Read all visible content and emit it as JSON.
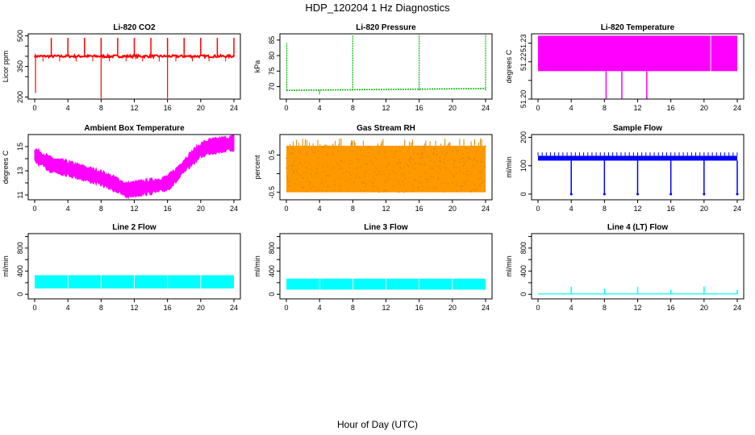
{
  "title": "HDP_120204  1 Hz Diagnostics",
  "xlabel": "Hour of Day (UTC)",
  "chart_data": [
    {
      "id": "co2",
      "type": "line",
      "title": "Li-820 CO2",
      "ylabel": "Licor ppm",
      "color": "#ff0000",
      "xlim": [
        0,
        24
      ],
      "xticks": [
        0,
        4,
        8,
        12,
        16,
        20,
        24
      ],
      "ylim": [
        190,
        510
      ],
      "yticks": [
        200,
        300,
        350,
        400,
        450,
        500
      ],
      "yticklabels": [
        "200",
        "",
        "350",
        "",
        "",
        "500"
      ],
      "baseline": 400,
      "noise": 6,
      "spikes_up": [
        2,
        4,
        6,
        8,
        10,
        12,
        14,
        16,
        18,
        20,
        22,
        24
      ],
      "spike_top": 490,
      "spikes_down": [
        {
          "x": 0.1,
          "y": 220
        },
        {
          "x": 8.0,
          "y": 195
        },
        {
          "x": 16.0,
          "y": 195
        }
      ]
    },
    {
      "id": "pressure",
      "type": "line",
      "title": "Li-820 Pressure",
      "ylabel": "kPa",
      "color": "#00bb00",
      "xlim": [
        0,
        24
      ],
      "xticks": [
        0,
        4,
        8,
        12,
        16,
        20,
        24
      ],
      "ylim": [
        66,
        87
      ],
      "yticks": [
        70,
        75,
        80,
        85
      ],
      "yticklabels": [
        "70",
        "75",
        "80",
        "85"
      ],
      "baseline": 68.8,
      "drift_end": 69.4,
      "spikes_up": [
        0.05,
        8,
        16,
        24
      ],
      "spike_tops": [
        84,
        86.5,
        86.8,
        86.8
      ]
    },
    {
      "id": "temperature",
      "type": "area",
      "title": "Li-820 Temperature",
      "ylabel": "degrees C",
      "color": "#ff00ff",
      "xlim": [
        0,
        24
      ],
      "xticks": [
        0,
        4,
        8,
        12,
        16,
        20,
        24
      ],
      "ylim": [
        51.2,
        51.235
      ],
      "yticks": [
        51.2,
        51.21,
        51.22,
        51.23
      ],
      "yticklabels": [
        "51.20",
        "",
        "51.22",
        "51.23"
      ],
      "band_low": 51.215,
      "band_high": 51.234,
      "gap_x": [
        20.8
      ],
      "drops_x": [
        8.2,
        10.1,
        13.1
      ],
      "drop_to": 51.2
    },
    {
      "id": "boxtemp",
      "type": "area",
      "title": "Ambient Box Temperature",
      "ylabel": "degrees C",
      "color": "#ff00ff",
      "xlim": [
        0,
        24
      ],
      "xticks": [
        0,
        4,
        8,
        12,
        16,
        20,
        24
      ],
      "ylim": [
        10.6,
        16
      ],
      "yticks": [
        11,
        12,
        13,
        14,
        15
      ],
      "yticklabels": [
        "11",
        "",
        "13",
        "",
        "15"
      ],
      "x": [
        0,
        1,
        2,
        4,
        6,
        8,
        10,
        11,
        12,
        13,
        14,
        15,
        16,
        17,
        18,
        19,
        20,
        21,
        22,
        23,
        24
      ],
      "y": [
        14.3,
        13.9,
        13.5,
        13.2,
        12.8,
        12.4,
        11.8,
        11.4,
        11.5,
        11.6,
        11.7,
        11.8,
        12.0,
        12.6,
        13.4,
        14.1,
        14.7,
        15.0,
        15.1,
        15.2,
        15.3
      ],
      "halfwidth": 0.55
    },
    {
      "id": "rh",
      "type": "scatter",
      "title": "Gas Stream RH",
      "ylabel": "percent",
      "color": "#ff9900",
      "point_color": "#dd8800",
      "xlim": [
        0,
        24
      ],
      "xticks": [
        0,
        4,
        8,
        12,
        16,
        20,
        24
      ],
      "ylim": [
        -0.7,
        1.05
      ],
      "yticks": [
        -0.5,
        0,
        0.5
      ],
      "yticklabels": [
        "-0.5",
        "",
        "0.5"
      ],
      "low": -0.5,
      "high": 0.75,
      "spike_high": 0.95
    },
    {
      "id": "sampleflow",
      "type": "line",
      "title": "Sample Flow",
      "ylabel": "ml/min",
      "color": "#0000ff",
      "xlim": [
        0,
        24
      ],
      "xticks": [
        0,
        4,
        8,
        12,
        16,
        20,
        24
      ],
      "ylim": [
        -20,
        210
      ],
      "yticks": [
        0,
        100,
        200
      ],
      "yticklabels": [
        "0",
        "100",
        "200"
      ],
      "baseline_low": 118,
      "baseline_high": 135,
      "dropouts": [
        4,
        8,
        12,
        16,
        20,
        24
      ],
      "dropout_y": 0
    },
    {
      "id": "line2",
      "type": "area",
      "title": "Line 2 Flow",
      "ylabel": "ml/min",
      "color": "#00ffff",
      "xlim": [
        0,
        24
      ],
      "xticks": [
        0,
        4,
        8,
        12,
        16,
        20,
        24
      ],
      "ylim": [
        -80,
        1050
      ],
      "yticks": [
        0,
        200,
        400,
        600,
        800,
        1000
      ],
      "yticklabels": [
        "0",
        "",
        "400",
        "",
        "800",
        ""
      ],
      "band_low": 100,
      "band_high": 330,
      "gaps_x": [
        4,
        8,
        12,
        16,
        20
      ]
    },
    {
      "id": "line3",
      "type": "area",
      "title": "Line 3 Flow",
      "ylabel": "ml/min",
      "color": "#00ffff",
      "xlim": [
        0,
        24
      ],
      "xticks": [
        0,
        4,
        8,
        12,
        16,
        20,
        24
      ],
      "ylim": [
        -80,
        1050
      ],
      "yticks": [
        0,
        200,
        400,
        600,
        800,
        1000
      ],
      "yticklabels": [
        "0",
        "",
        "400",
        "",
        "800",
        ""
      ],
      "band_low": 80,
      "band_high": 270,
      "gaps_x": [
        4,
        8,
        12,
        16,
        20
      ]
    },
    {
      "id": "line4",
      "type": "line",
      "title": "Line 4 (LT) Flow",
      "ylabel": "ml/min",
      "color": "#00ffff",
      "xlim": [
        0,
        24
      ],
      "xticks": [
        0,
        4,
        8,
        12,
        16,
        20,
        24
      ],
      "ylim": [
        -80,
        1050
      ],
      "yticks": [
        0,
        200,
        400,
        600,
        800,
        1000
      ],
      "yticklabels": [
        "0",
        "",
        "400",
        "",
        "800",
        ""
      ],
      "baseline": 5,
      "spikes_x": [
        4,
        8,
        12,
        16,
        20,
        24
      ],
      "spike_tops": [
        130,
        95,
        125,
        80,
        135,
        75
      ]
    }
  ]
}
